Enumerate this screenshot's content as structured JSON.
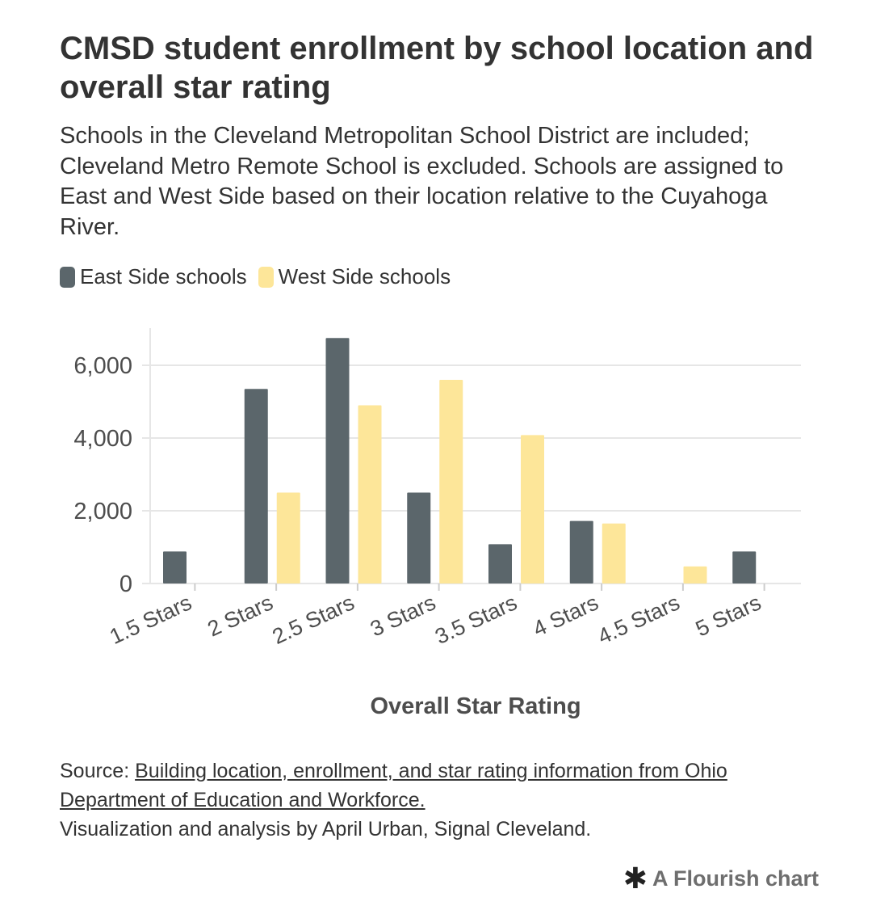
{
  "title": "CMSD student enrollment by school location and overall star rating",
  "subtitle": "Schools in the Cleveland Metropolitan School District are included; Cleveland Metro Remote School is excluded. Schools are assigned to East and West Side based on their location relative to the Cuyahoga River.",
  "legend": {
    "east_label": "East Side schools",
    "west_label": "West Side schools"
  },
  "colors": {
    "east": "#5b666b",
    "west": "#fde699",
    "grid": "#e6e6e6",
    "axis_text": "#4d4d4d"
  },
  "chart_data": {
    "type": "bar",
    "categories": [
      "1.5 Stars",
      "2 Stars",
      "2.5 Stars",
      "3 Stars",
      "3.5 Stars",
      "4 Stars",
      "4.5 Stars",
      "5 Stars"
    ],
    "series": [
      {
        "name": "East Side schools",
        "values": [
          880,
          5350,
          6750,
          2500,
          1080,
          1720,
          null,
          880
        ]
      },
      {
        "name": "West Side schools",
        "values": [
          null,
          2500,
          4900,
          5600,
          4080,
          1650,
          470,
          null
        ]
      }
    ],
    "xlabel": "Overall Star Rating",
    "ylabel": "",
    "ylim": [
      0,
      7000
    ],
    "yticks": [
      0,
      2000,
      4000,
      6000
    ],
    "ytick_labels": [
      "0",
      "2,000",
      "4,000",
      "6,000"
    ],
    "grid": true,
    "legend_position": "top-left"
  },
  "source": {
    "prefix": "Source: ",
    "link_text": "Building location, enrollment, and star rating information from Ohio Department of Education and Workforce.",
    "credit": "Visualization and analysis by April Urban, Signal Cleveland."
  },
  "footer": {
    "star_glyph": "✱",
    "label": "A Flourish chart"
  }
}
